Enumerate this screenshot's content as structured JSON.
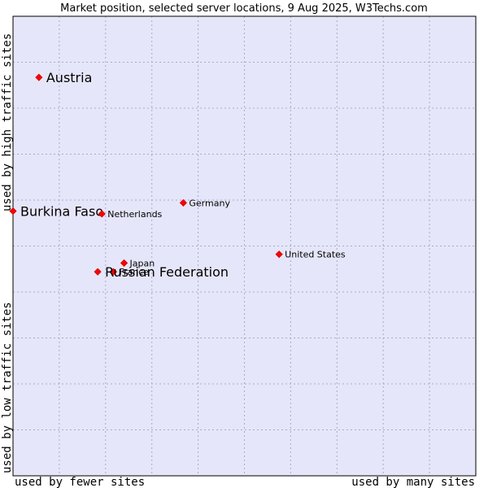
{
  "chart_data": {
    "type": "scatter",
    "title": "Market position, selected server locations, 9 Aug 2025, W3Techs.com",
    "xlabel_left": "used by fewer sites",
    "xlabel_right": "used by many sites",
    "ylabel_top": "used by high traffic sites",
    "ylabel_bottom": "used by low traffic sites",
    "xlim": [
      0,
      100
    ],
    "ylim": [
      0,
      100
    ],
    "grid": true,
    "points": [
      {
        "label": "Austria",
        "x": 5.6,
        "y": 86.7,
        "emphasis": true
      },
      {
        "label": "Burkina Faso",
        "x": 0.0,
        "y": 57.6,
        "emphasis": true
      },
      {
        "label": "Netherlands",
        "x": 19.2,
        "y": 57.0,
        "emphasis": false
      },
      {
        "label": "Germany",
        "x": 36.8,
        "y": 59.4,
        "emphasis": false
      },
      {
        "label": "United States",
        "x": 57.5,
        "y": 48.2,
        "emphasis": false
      },
      {
        "label": "Japan",
        "x": 24.0,
        "y": 46.3,
        "emphasis": false
      },
      {
        "label": "France",
        "x": 21.7,
        "y": 44.4,
        "emphasis": false
      },
      {
        "label": "Russian Federation",
        "x": 18.3,
        "y": 44.4,
        "emphasis": true
      }
    ],
    "colors": {
      "background": "#e6e6fa",
      "marker": "#ff0000",
      "marker_edge": "#cc0000",
      "grid": "#a9a9c9",
      "border": "#000000"
    }
  }
}
